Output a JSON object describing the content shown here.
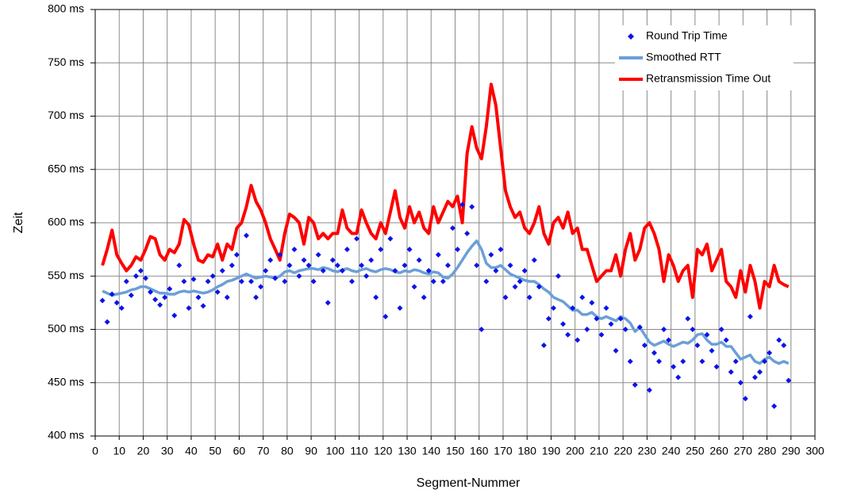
{
  "chart_data": {
    "type": "scatter",
    "x_label": "Segment-Nummer",
    "y_label": "Zeit",
    "x": [
      3,
      5,
      7,
      9,
      11,
      13,
      15,
      17,
      19,
      21,
      23,
      25,
      27,
      29,
      31,
      33,
      35,
      37,
      39,
      41,
      43,
      45,
      47,
      49,
      51,
      53,
      55,
      57,
      59,
      61,
      63,
      65,
      67,
      69,
      71,
      73,
      75,
      77,
      79,
      81,
      83,
      85,
      87,
      89,
      91,
      93,
      95,
      97,
      99,
      101,
      103,
      105,
      107,
      109,
      111,
      113,
      115,
      117,
      119,
      121,
      123,
      125,
      127,
      129,
      131,
      133,
      135,
      137,
      139,
      141,
      143,
      145,
      147,
      149,
      151,
      153,
      155,
      157,
      159,
      161,
      163,
      165,
      167,
      169,
      171,
      173,
      175,
      177,
      179,
      181,
      183,
      185,
      187,
      189,
      191,
      193,
      195,
      197,
      199,
      201,
      203,
      205,
      207,
      209,
      211,
      213,
      215,
      217,
      219,
      221,
      223,
      225,
      227,
      229,
      231,
      233,
      235,
      237,
      239,
      241,
      243,
      245,
      247,
      249,
      251,
      253,
      255,
      257,
      259,
      261,
      263,
      265,
      267,
      269,
      271,
      273,
      275,
      277,
      279,
      281,
      283,
      285,
      287,
      289
    ],
    "series": [
      {
        "name": "Round Trip Time",
        "style": "markers",
        "color": "#0a14e6",
        "values": [
          527,
          507,
          533,
          525,
          520,
          545,
          532,
          550,
          555,
          548,
          535,
          528,
          523,
          530,
          538,
          513,
          560,
          545,
          520,
          547,
          530,
          522,
          545,
          550,
          535,
          555,
          530,
          560,
          570,
          545,
          588,
          545,
          530,
          540,
          555,
          565,
          548,
          570,
          545,
          560,
          575,
          550,
          565,
          560,
          545,
          570,
          555,
          525,
          565,
          560,
          555,
          575,
          545,
          585,
          560,
          550,
          565,
          530,
          575,
          512,
          585,
          555,
          520,
          560,
          575,
          540,
          565,
          530,
          555,
          545,
          570,
          545,
          560,
          595,
          575,
          617,
          590,
          615,
          560,
          500,
          545,
          570,
          555,
          575,
          530,
          560,
          540,
          545,
          555,
          530,
          565,
          540,
          485,
          510,
          520,
          550,
          505,
          495,
          520,
          490,
          530,
          500,
          525,
          510,
          495,
          520,
          505,
          480,
          510,
          500,
          470,
          448,
          502,
          485,
          443,
          478,
          470,
          500,
          490,
          465,
          455,
          470,
          510,
          500,
          485,
          470,
          495,
          480,
          465,
          500,
          490,
          460,
          470,
          450,
          435,
          512,
          455,
          460,
          470,
          478,
          428,
          490,
          485,
          452
        ]
      },
      {
        "name": "Smoothed RTT",
        "style": "line",
        "color": "#6b9fd8",
        "values": [
          536,
          534,
          532,
          533,
          534,
          535,
          537,
          538,
          540,
          540,
          538,
          536,
          534,
          534,
          533,
          533,
          535,
          536,
          535,
          536,
          535,
          534,
          535,
          537,
          540,
          542,
          545,
          546,
          548,
          550,
          552,
          550,
          548,
          549,
          550,
          549,
          548,
          550,
          554,
          555,
          553,
          555,
          556,
          557,
          557,
          556,
          558,
          557,
          555,
          554,
          556,
          557,
          555,
          554,
          556,
          557,
          555,
          554,
          556,
          557,
          556,
          554,
          553,
          555,
          554,
          556,
          555,
          553,
          552,
          554,
          553,
          549,
          548,
          552,
          558,
          565,
          572,
          578,
          583,
          575,
          562,
          558,
          558,
          560,
          556,
          552,
          550,
          548,
          546,
          545,
          545,
          542,
          538,
          535,
          530,
          528,
          526,
          522,
          518,
          518,
          514,
          514,
          516,
          512,
          510,
          512,
          510,
          508,
          512,
          510,
          506,
          498,
          502,
          495,
          488,
          485,
          487,
          489,
          486,
          484,
          486,
          488,
          487,
          490,
          495,
          496,
          490,
          486,
          486,
          488,
          484,
          484,
          478,
          472,
          474,
          476,
          470,
          468,
          472,
          474,
          470,
          468,
          470,
          468
        ]
      },
      {
        "name": "Retransmission Time Out",
        "style": "line",
        "color": "#ff0000",
        "values": [
          560,
          575,
          593,
          570,
          562,
          555,
          560,
          568,
          565,
          575,
          587,
          585,
          570,
          565,
          575,
          572,
          580,
          603,
          598,
          580,
          565,
          563,
          570,
          568,
          580,
          565,
          580,
          575,
          595,
          600,
          615,
          635,
          620,
          612,
          600,
          585,
          575,
          565,
          590,
          608,
          605,
          600,
          580,
          605,
          600,
          585,
          590,
          585,
          590,
          590,
          612,
          595,
          590,
          590,
          612,
          600,
          590,
          585,
          600,
          590,
          610,
          630,
          605,
          595,
          615,
          600,
          610,
          595,
          590,
          615,
          600,
          610,
          620,
          615,
          625,
          600,
          665,
          690,
          670,
          660,
          690,
          730,
          710,
          670,
          630,
          615,
          605,
          610,
          595,
          590,
          600,
          615,
          590,
          580,
          600,
          605,
          595,
          610,
          590,
          595,
          575,
          575,
          560,
          545,
          550,
          555,
          555,
          570,
          550,
          575,
          590,
          565,
          575,
          595,
          600,
          590,
          575,
          545,
          570,
          560,
          545,
          555,
          560,
          530,
          575,
          570,
          580,
          555,
          565,
          575,
          545,
          540,
          530,
          555,
          535,
          560,
          545,
          520,
          545,
          540,
          560,
          545,
          542,
          540
        ]
      }
    ],
    "xlim": [
      0,
      300
    ],
    "xticks": [
      0,
      10,
      20,
      30,
      40,
      50,
      60,
      70,
      80,
      90,
      100,
      110,
      120,
      130,
      140,
      150,
      160,
      170,
      180,
      190,
      200,
      210,
      220,
      230,
      240,
      250,
      260,
      270,
      280,
      290,
      300
    ],
    "ylim": [
      400,
      800
    ],
    "yticks": [
      {
        "value": 400,
        "label": "400 ms"
      },
      {
        "value": 450,
        "label": "450 ms"
      },
      {
        "value": 500,
        "label": "500 ms"
      },
      {
        "value": 550,
        "label": "550 ms"
      },
      {
        "value": 600,
        "label": "600 ms"
      },
      {
        "value": 650,
        "label": "650 ms"
      },
      {
        "value": 700,
        "label": "700 ms"
      },
      {
        "value": 750,
        "label": "750 ms"
      },
      {
        "value": 800,
        "label": "800 ms"
      }
    ],
    "grid": true,
    "legend": "upper-right"
  }
}
